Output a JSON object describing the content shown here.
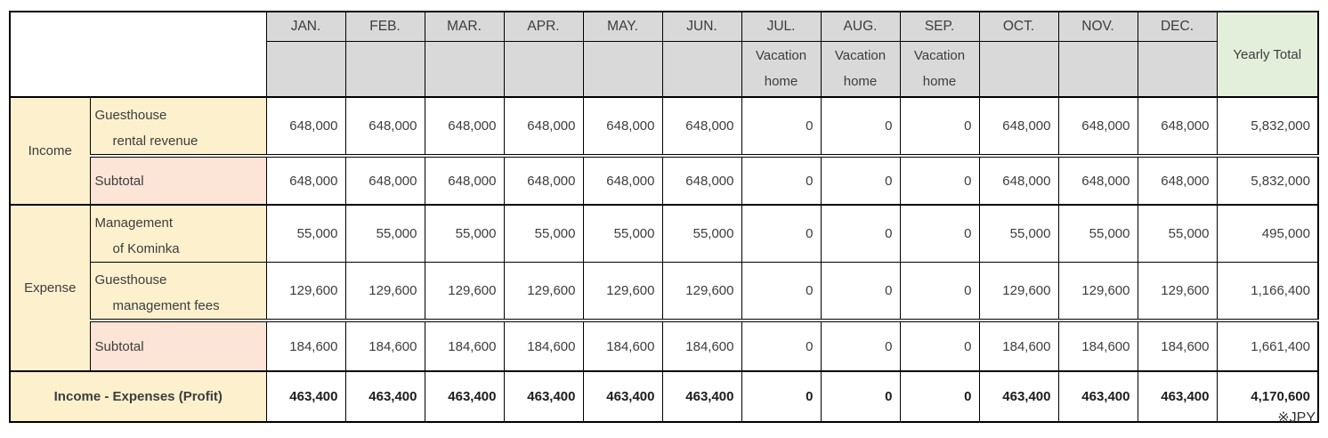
{
  "table": {
    "months": [
      "JAN.",
      "FEB.",
      "MAR.",
      "APR.",
      "MAY.",
      "JUN.",
      "JUL.",
      "AUG.",
      "SEP.",
      "OCT.",
      "NOV.",
      "DEC."
    ],
    "vacation_note": {
      "line1": "Vacation",
      "line2": "home",
      "applies_to": [
        "JUL.",
        "AUG.",
        "SEP."
      ]
    },
    "yearly_total_header": "Yearly Total",
    "categories": {
      "income": "Income",
      "expense": "Expense"
    },
    "rows": {
      "income_revenue": {
        "label_line1": "Guesthouse",
        "label_line2": "rental revenue",
        "values": [
          "648,000",
          "648,000",
          "648,000",
          "648,000",
          "648,000",
          "648,000",
          "0",
          "0",
          "0",
          "648,000",
          "648,000",
          "648,000"
        ],
        "total": "5,832,000"
      },
      "income_subtotal": {
        "label": "Subtotal",
        "values": [
          "648,000",
          "648,000",
          "648,000",
          "648,000",
          "648,000",
          "648,000",
          "0",
          "0",
          "0",
          "648,000",
          "648,000",
          "648,000"
        ],
        "total": "5,832,000"
      },
      "expense_kominka": {
        "label_line1": "Management",
        "label_line2": "of Kominka",
        "values": [
          "55,000",
          "55,000",
          "55,000",
          "55,000",
          "55,000",
          "55,000",
          "0",
          "0",
          "0",
          "55,000",
          "55,000",
          "55,000"
        ],
        "total": "495,000"
      },
      "expense_fees": {
        "label_line1": "Guesthouse",
        "label_line2": "management fees",
        "values": [
          "129,600",
          "129,600",
          "129,600",
          "129,600",
          "129,600",
          "129,600",
          "0",
          "0",
          "0",
          "129,600",
          "129,600",
          "129,600"
        ],
        "total": "1,166,400"
      },
      "expense_subtotal": {
        "label": "Subtotal",
        "values": [
          "184,600",
          "184,600",
          "184,600",
          "184,600",
          "184,600",
          "184,600",
          "0",
          "0",
          "0",
          "184,600",
          "184,600",
          "184,600"
        ],
        "total": "1,661,400"
      },
      "profit": {
        "label": "Income - Expenses (Profit)",
        "values": [
          "463,400",
          "463,400",
          "463,400",
          "463,400",
          "463,400",
          "463,400",
          "0",
          "0",
          "0",
          "463,400",
          "463,400",
          "463,400"
        ],
        "total": "4,170,600"
      }
    }
  },
  "footnote": "※JPY",
  "colors": {
    "header_gray": "#d9d9d9",
    "yearly_green": "#e3efdb",
    "label_cream": "#fcf0cd",
    "subtotal_pink": "#fce4d6",
    "border": "#000000"
  }
}
